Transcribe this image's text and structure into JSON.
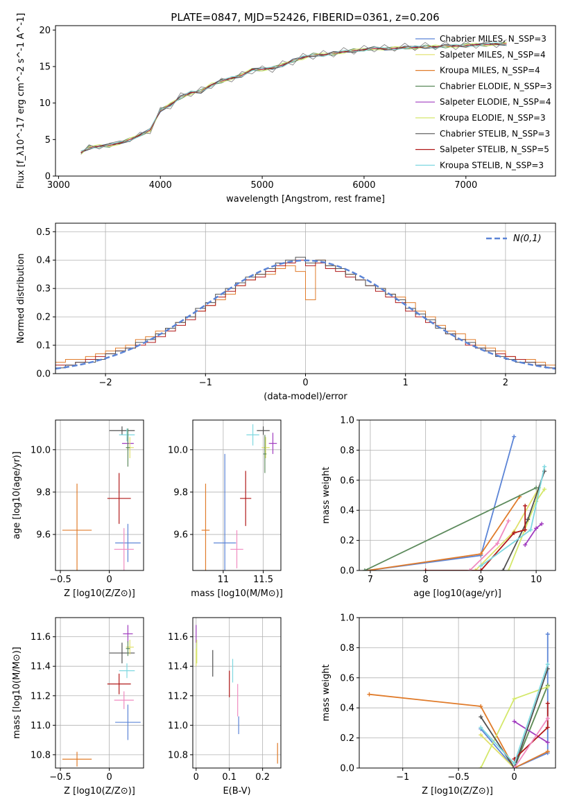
{
  "figure_title": "PLATE=0847, MJD=52426, FIBERID=0361, z=0.206",
  "chart_data": [
    {
      "id": "spectrum",
      "type": "line",
      "xlabel": "wavelength [Angstrom, rest frame]",
      "ylabel": "Flux [f_λ10^-17 erg cm^-2 s^-1 A^-1]",
      "xlim": [
        2970,
        7880
      ],
      "ylim": [
        0,
        20.6
      ],
      "xticks": [
        3000,
        4000,
        5000,
        6000,
        7000
      ],
      "yticks": [
        0,
        5,
        10,
        15,
        20
      ],
      "grid": false,
      "legend_position": "top-right",
      "x": [
        3220,
        3300,
        3400,
        3500,
        3600,
        3700,
        3800,
        3900,
        4000,
        4100,
        4200,
        4300,
        4400,
        4500,
        4600,
        4700,
        4800,
        4900,
        5000,
        5100,
        5200,
        5300,
        5400,
        5500,
        5600,
        5700,
        5800,
        5900,
        6000,
        6100,
        6200,
        6300,
        6400,
        6500,
        6600,
        6700,
        6800,
        6900,
        7000,
        7100,
        7200,
        7300,
        7400
      ],
      "model_values": [
        3.2,
        3.9,
        4.1,
        4.2,
        4.5,
        5.0,
        5.6,
        6.3,
        9.0,
        9.8,
        10.8,
        11.4,
        11.6,
        12.5,
        13.0,
        13.4,
        13.8,
        14.6,
        14.6,
        14.8,
        15.2,
        15.8,
        16.2,
        16.6,
        16.6,
        16.8,
        17.0,
        17.2,
        17.3,
        17.5,
        17.4,
        17.5,
        17.6,
        17.6,
        17.7,
        17.7,
        17.8,
        17.8,
        17.9,
        18.0,
        18.0,
        18.1,
        18.1
      ],
      "data_values": [
        3.0,
        4.3,
        3.7,
        4.5,
        4.8,
        4.7,
        6.0,
        5.8,
        9.4,
        9.2,
        11.4,
        10.9,
        12.2,
        12.0,
        13.4,
        12.9,
        14.3,
        14.0,
        15.1,
        14.2,
        15.8,
        15.2,
        16.8,
        16.0,
        17.2,
        16.3,
        17.6,
        16.7,
        17.9,
        17.0,
        18.0,
        17.1,
        18.2,
        17.2,
        18.3,
        17.3,
        18.4,
        17.3,
        18.5,
        17.5,
        18.6,
        17.6,
        18.7
      ],
      "series": [
        {
          "name": "Chabrier MILES, N_SSP=3",
          "color": "#5b84d6"
        },
        {
          "name": "Salpeter MILES, N_SSP=4",
          "color": "#e0e06a"
        },
        {
          "name": "Kroupa MILES, N_SSP=4",
          "color": "#e07b2a"
        },
        {
          "name": "Chabrier ELODIE, N_SSP=3",
          "color": "#5c8a5c"
        },
        {
          "name": "Salpeter ELODIE, N_SSP=4",
          "color": "#a03cbf"
        },
        {
          "name": "Kroupa ELODIE, N_SSP=3",
          "color": "#d4e86a"
        },
        {
          "name": "Chabrier STELIB, N_SSP=3",
          "color": "#505050"
        },
        {
          "name": "Salpeter STELIB, N_SSP=5",
          "color": "#b01818"
        },
        {
          "name": "Kroupa STELIB, N_SSP=3",
          "color": "#7ed8e0"
        }
      ]
    },
    {
      "id": "residuals",
      "type": "line",
      "xlabel": "(data-model)/error",
      "ylabel": "Normed distribution",
      "xlim": [
        -2.5,
        2.5
      ],
      "ylim": [
        0,
        0.53
      ],
      "xticks": [
        -2,
        -1,
        0,
        1,
        2
      ],
      "yticks": [
        0.0,
        0.1,
        0.2,
        0.3,
        0.4,
        0.5
      ],
      "grid": true,
      "legend_position": "top-right",
      "reference_series": {
        "name": "N(0,1)",
        "color": "#5b84d6",
        "style": "dashed"
      },
      "bin_width": 0.1,
      "histograms": [
        {
          "color": "#e07b2a",
          "values": [
            0.04,
            0.05,
            0.05,
            0.06,
            0.07,
            0.08,
            0.09,
            0.1,
            0.12,
            0.13,
            0.15,
            0.16,
            0.18,
            0.2,
            0.22,
            0.24,
            0.26,
            0.28,
            0.31,
            0.33,
            0.35,
            0.35,
            0.37,
            0.38,
            0.36,
            0.26,
            0.4,
            0.38,
            0.37,
            0.35,
            0.33,
            0.31,
            0.3,
            0.28,
            0.27,
            0.25,
            0.22,
            0.2,
            0.17,
            0.15,
            0.14,
            0.12,
            0.1,
            0.09,
            0.08,
            0.06,
            0.05,
            0.05,
            0.04,
            0.03
          ]
        },
        {
          "color": "#b01818",
          "values": [
            0.03,
            0.03,
            0.04,
            0.05,
            0.06,
            0.07,
            0.08,
            0.09,
            0.1,
            0.11,
            0.13,
            0.15,
            0.17,
            0.19,
            0.22,
            0.24,
            0.27,
            0.29,
            0.31,
            0.33,
            0.34,
            0.36,
            0.38,
            0.39,
            0.4,
            0.38,
            0.39,
            0.37,
            0.36,
            0.34,
            0.33,
            0.31,
            0.29,
            0.27,
            0.25,
            0.22,
            0.2,
            0.18,
            0.16,
            0.14,
            0.12,
            0.1,
            0.09,
            0.08,
            0.07,
            0.06,
            0.05,
            0.04,
            0.03,
            0.02
          ]
        },
        {
          "color": "#505050",
          "values": [
            0.02,
            0.03,
            0.04,
            0.04,
            0.05,
            0.07,
            0.08,
            0.09,
            0.11,
            0.12,
            0.14,
            0.16,
            0.18,
            0.2,
            0.23,
            0.25,
            0.28,
            0.3,
            0.32,
            0.34,
            0.35,
            0.37,
            0.39,
            0.4,
            0.41,
            0.39,
            0.4,
            0.38,
            0.37,
            0.35,
            0.33,
            0.31,
            0.3,
            0.28,
            0.26,
            0.23,
            0.21,
            0.19,
            0.16,
            0.14,
            0.12,
            0.11,
            0.09,
            0.08,
            0.06,
            0.05,
            0.04,
            0.04,
            0.03,
            0.02
          ]
        }
      ]
    },
    {
      "id": "age-vs-Z",
      "type": "scatter",
      "xlabel": "Z [log10(Z/Z⊙)]",
      "ylabel": "age [log10(age/yr)]",
      "xlim": [
        -0.55,
        0.35
      ],
      "ylim": [
        9.43,
        10.14
      ],
      "xticks": [
        -0.5,
        0.0,
        0.5
      ],
      "yticks": [
        9.6,
        9.8,
        10.0
      ],
      "grid": true,
      "points": [
        {
          "color": "#e07b2a",
          "x": -0.33,
          "y": 9.62,
          "xerr": 0.15,
          "yerr": 0.22
        },
        {
          "color": "#5b84d6",
          "x": 0.19,
          "y": 9.56,
          "xerr": 0.13,
          "yerr": 0.09
        },
        {
          "color": "#f08ac0",
          "x": 0.15,
          "y": 9.53,
          "xerr": 0.1,
          "yerr": 0.1
        },
        {
          "color": "#b01818",
          "x": 0.1,
          "y": 9.77,
          "xerr": 0.12,
          "yerr": 0.12
        },
        {
          "color": "#505050",
          "x": 0.13,
          "y": 10.09,
          "xerr": 0.13,
          "yerr": 0.02
        },
        {
          "color": "#a03cbf",
          "x": 0.19,
          "y": 10.03,
          "xerr": 0.06,
          "yerr": 0.03
        },
        {
          "color": "#e0e06a",
          "x": 0.21,
          "y": 10.01,
          "xerr": 0.04,
          "yerr": 0.05
        },
        {
          "color": "#7ed8e0",
          "x": 0.18,
          "y": 10.07,
          "xerr": 0.08,
          "yerr": 0.03
        },
        {
          "color": "#5c8a5c",
          "x": 0.19,
          "y": 10.01,
          "xerr": 0.02,
          "yerr": 0.09
        }
      ]
    },
    {
      "id": "age-vs-mass",
      "type": "scatter",
      "xlabel": "mass [log10(M/M⊙)]",
      "ylabel": "",
      "xlim": [
        10.62,
        11.72
      ],
      "ylim": [
        9.43,
        10.14
      ],
      "xticks": [
        11.0,
        11.5
      ],
      "yticks": [
        9.6,
        9.8,
        10.0
      ],
      "grid": true,
      "points": [
        {
          "color": "#e07b2a",
          "x": 10.78,
          "y": 9.62,
          "xerr": 0.05,
          "yerr": 0.22
        },
        {
          "color": "#5b84d6",
          "x": 11.02,
          "y": 9.56,
          "xerr": 0.14,
          "yerr": 0.42
        },
        {
          "color": "#f08ac0",
          "x": 11.17,
          "y": 9.53,
          "xerr": 0.08,
          "yerr": 0.09
        },
        {
          "color": "#b01818",
          "x": 11.28,
          "y": 9.77,
          "xerr": 0.07,
          "yerr": 0.13
        },
        {
          "color": "#505050",
          "x": 11.5,
          "y": 10.09,
          "xerr": 0.08,
          "yerr": 0.02
        },
        {
          "color": "#a03cbf",
          "x": 11.62,
          "y": 10.03,
          "xerr": 0.05,
          "yerr": 0.05
        },
        {
          "color": "#e0e06a",
          "x": 11.53,
          "y": 10.01,
          "xerr": 0.05,
          "yerr": 0.05
        },
        {
          "color": "#7ed8e0",
          "x": 11.37,
          "y": 10.07,
          "xerr": 0.08,
          "yerr": 0.05
        },
        {
          "color": "#5c8a5c",
          "x": 11.52,
          "y": 9.98,
          "xerr": 0.02,
          "yerr": 0.09
        }
      ]
    },
    {
      "id": "mass-weight-vs-age",
      "type": "line",
      "xlabel": "age [log10(age/yr)]",
      "ylabel": "mass weight",
      "xlim": [
        6.8,
        10.35
      ],
      "ylim": [
        0,
        1
      ],
      "xticks": [
        7,
        8,
        9,
        10
      ],
      "yticks": [
        0.0,
        0.2,
        0.4,
        0.6,
        0.8,
        1.0
      ],
      "grid": true,
      "series": [
        {
          "color": "#5b84d6",
          "x": [
            6.95,
            9.0,
            9.6
          ],
          "y": [
            0.0,
            0.1,
            0.89
          ]
        },
        {
          "color": "#e0e06a",
          "x": [
            8.9,
            9.6,
            10.05,
            10.0
          ],
          "y": [
            0.0,
            0.26,
            0.55,
            0.46
          ]
        },
        {
          "color": "#e07b2a",
          "x": [
            6.95,
            9.0,
            9.7
          ],
          "y": [
            0.0,
            0.11,
            0.49
          ]
        },
        {
          "color": "#5c8a5c",
          "x": [
            6.9,
            10.0
          ],
          "y": [
            0.0,
            0.55
          ]
        },
        {
          "color": "#a03cbf",
          "x": [
            9.8,
            10.0,
            10.1
          ],
          "y": [
            0.17,
            0.28,
            0.31
          ]
        },
        {
          "color": "#d4e86a",
          "x": [
            9.5,
            10.0,
            10.15
          ],
          "y": [
            0.0,
            0.46,
            0.54
          ]
        },
        {
          "color": "#505050",
          "x": [
            9.4,
            9.85,
            10.15
          ],
          "y": [
            0.0,
            0.34,
            0.66
          ]
        },
        {
          "color": "#b01818",
          "x": [
            8.0,
            9.0,
            9.6,
            9.8,
            9.8
          ],
          "y": [
            0.0,
            0.0,
            0.25,
            0.27,
            0.43
          ]
        },
        {
          "color": "#7ed8e0",
          "x": [
            9.0,
            9.9,
            10.15
          ],
          "y": [
            0.03,
            0.27,
            0.69
          ]
        },
        {
          "color": "#f08ac0",
          "x": [
            8.8,
            9.3,
            9.5
          ],
          "y": [
            0.0,
            0.18,
            0.33
          ]
        }
      ]
    },
    {
      "id": "mass-vs-Z",
      "type": "scatter",
      "xlabel": "Z [log10(Z/Z⊙)]",
      "ylabel": "mass [log10(M/M⊙)]",
      "xlim": [
        -0.55,
        0.35
      ],
      "ylim": [
        10.71,
        11.73
      ],
      "xticks": [
        -0.5,
        0.0,
        0.5
      ],
      "yticks": [
        10.8,
        11.0,
        11.2,
        11.4,
        11.6
      ],
      "grid": true,
      "points": [
        {
          "color": "#e07b2a",
          "x": -0.33,
          "y": 10.77,
          "xerr": 0.15,
          "yerr": 0.05
        },
        {
          "color": "#5b84d6",
          "x": 0.19,
          "y": 11.02,
          "xerr": 0.13,
          "yerr": 0.12
        },
        {
          "color": "#f08ac0",
          "x": 0.15,
          "y": 11.17,
          "xerr": 0.1,
          "yerr": 0.06
        },
        {
          "color": "#b01818",
          "x": 0.1,
          "y": 11.28,
          "xerr": 0.12,
          "yerr": 0.07
        },
        {
          "color": "#505050",
          "x": 0.13,
          "y": 11.49,
          "xerr": 0.13,
          "yerr": 0.07
        },
        {
          "color": "#a03cbf",
          "x": 0.19,
          "y": 11.62,
          "xerr": 0.05,
          "yerr": 0.06
        },
        {
          "color": "#e0e06a",
          "x": 0.21,
          "y": 11.53,
          "xerr": 0.04,
          "yerr": 0.05
        },
        {
          "color": "#7ed8e0",
          "x": 0.18,
          "y": 11.37,
          "xerr": 0.08,
          "yerr": 0.05
        },
        {
          "color": "#5c8a5c",
          "x": 0.19,
          "y": 11.52,
          "xerr": 0.02,
          "yerr": 0.05
        }
      ]
    },
    {
      "id": "mass-vs-ebv",
      "type": "scatter",
      "xlabel": "E(B-V)",
      "ylabel": "",
      "xlim": [
        -0.01,
        0.255
      ],
      "ylim": [
        10.71,
        11.73
      ],
      "xticks": [
        0.0,
        0.1,
        0.2
      ],
      "yticks": [
        10.8,
        11.0,
        11.2,
        11.4,
        11.6
      ],
      "grid": true,
      "points": [
        {
          "color": "#e07b2a",
          "x": 0.245,
          "y": 10.81,
          "xerr": 0.0,
          "yerr": 0.07
        },
        {
          "color": "#5b84d6",
          "x": 0.128,
          "y": 11.0,
          "xerr": 0.0,
          "yerr": 0.06
        },
        {
          "color": "#f08ac0",
          "x": 0.125,
          "y": 11.17,
          "xerr": 0.0,
          "yerr": 0.11
        },
        {
          "color": "#b01818",
          "x": 0.1,
          "y": 11.28,
          "xerr": 0.0,
          "yerr": 0.09
        },
        {
          "color": "#505050",
          "x": 0.05,
          "y": 11.42,
          "xerr": 0.0,
          "yerr": 0.09
        },
        {
          "color": "#a03cbf",
          "x": 0.0,
          "y": 11.62,
          "xerr": 0.0,
          "yerr": 0.06
        },
        {
          "color": "#e0e06a",
          "x": 0.0,
          "y": 11.46,
          "xerr": 0.0,
          "yerr": 0.06
        },
        {
          "color": "#7ed8e0",
          "x": 0.11,
          "y": 11.37,
          "xerr": 0.0,
          "yerr": 0.08
        },
        {
          "color": "#d4e86a",
          "x": 0.002,
          "y": 11.5,
          "xerr": 0.0,
          "yerr": 0.08
        }
      ]
    },
    {
      "id": "mass-weight-vs-Z",
      "type": "line",
      "xlabel": "Z [log10(Z/Z⊙)]",
      "ylabel": "mass weight",
      "xlim": [
        -1.39,
        0.37
      ],
      "ylim": [
        0,
        1
      ],
      "xticks": [
        -1.0,
        -0.5,
        0.0
      ],
      "yticks": [
        0.0,
        0.2,
        0.4,
        0.6,
        0.8,
        1.0
      ],
      "grid": true,
      "series": [
        {
          "color": "#5b84d6",
          "x": [
            -0.3,
            0.0,
            0.3,
            0.3
          ],
          "y": [
            0.26,
            0.0,
            0.1,
            0.89
          ]
        },
        {
          "color": "#e0e06a",
          "x": [
            -0.3,
            0.0,
            0.3
          ],
          "y": [
            0.22,
            0.0,
            0.55
          ]
        },
        {
          "color": "#e07b2a",
          "x": [
            -1.3,
            -0.3,
            0.0,
            0.3
          ],
          "y": [
            0.49,
            0.41,
            0.0,
            0.11
          ]
        },
        {
          "color": "#5c8a5c",
          "x": [
            0.0,
            0.3
          ],
          "y": [
            0.0,
            0.55
          ]
        },
        {
          "color": "#a03cbf",
          "x": [
            0.0,
            0.3
          ],
          "y": [
            0.31,
            0.17
          ]
        },
        {
          "color": "#d4e86a",
          "x": [
            -0.3,
            0.0,
            0.3
          ],
          "y": [
            0.0,
            0.46,
            0.54
          ]
        },
        {
          "color": "#505050",
          "x": [
            -0.3,
            0.0,
            0.3
          ],
          "y": [
            0.34,
            0.0,
            0.66
          ]
        },
        {
          "color": "#b01818",
          "x": [
            0.0,
            0.3,
            0.3
          ],
          "y": [
            0.06,
            0.27,
            0.43
          ]
        },
        {
          "color": "#7ed8e0",
          "x": [
            -0.3,
            0.0,
            0.3
          ],
          "y": [
            0.27,
            0.03,
            0.69
          ]
        },
        {
          "color": "#f08ac0",
          "x": [
            0.0,
            0.3
          ],
          "y": [
            0.0,
            0.33
          ]
        }
      ]
    }
  ]
}
